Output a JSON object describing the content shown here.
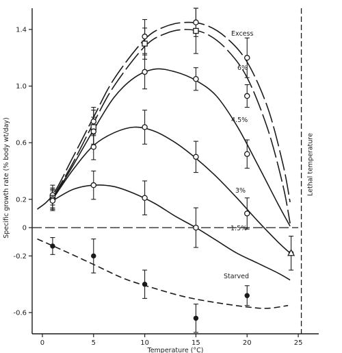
{
  "chart_data": {
    "type": "line",
    "title": "",
    "xlabel": "Temperature (°C)",
    "ylabel": "Specific growth rate (% body wt/day)",
    "xlim": [
      -1,
      27
    ],
    "ylim": [
      -0.75,
      1.55
    ],
    "x_ticks": [
      0,
      5,
      10,
      15,
      20,
      25
    ],
    "y_ticks": [
      -0.6,
      -0.2,
      0,
      0.2,
      0.6,
      1.0,
      1.4
    ],
    "x_tick_labels": [
      "0",
      "5",
      "10",
      "15",
      "20",
      "25"
    ],
    "y_tick_labels": [
      "-0.6",
      "-0.2",
      "0",
      "0.2",
      "0.6",
      "1.0",
      "1.4"
    ],
    "zero_line": true,
    "vertical_reference": {
      "x": 25.3,
      "label": "Lethal temperature"
    },
    "series": [
      {
        "name": "Excess",
        "marker": "open-circle",
        "dash": "long",
        "points": [
          {
            "x": 1,
            "y": 0.23,
            "err": 0.07
          },
          {
            "x": 5,
            "y": 0.75,
            "err": 0.1
          },
          {
            "x": 10,
            "y": 1.35,
            "err": 0.12
          },
          {
            "x": 15,
            "y": 1.45,
            "err": 0.1
          },
          {
            "x": 20,
            "y": 1.2,
            "err": 0.14
          }
        ],
        "curve": [
          [
            -0.5,
            0.13
          ],
          [
            1,
            0.23
          ],
          [
            3,
            0.5
          ],
          [
            5,
            0.78
          ],
          [
            7,
            1.05
          ],
          [
            10,
            1.33
          ],
          [
            12,
            1.42
          ],
          [
            14,
            1.45
          ],
          [
            16,
            1.43
          ],
          [
            18,
            1.34
          ],
          [
            20,
            1.17
          ],
          [
            22,
            0.85
          ],
          [
            23.5,
            0.45
          ],
          [
            24.2,
            0.18
          ]
        ]
      },
      {
        "name": "6%",
        "marker": "open-square",
        "dash": "long",
        "points": [
          {
            "x": 1,
            "y": 0.21,
            "err": 0.07
          },
          {
            "x": 5,
            "y": 0.71,
            "err": 0.12
          },
          {
            "x": 10,
            "y": 1.3,
            "err": 0.11
          },
          {
            "x": 15,
            "y": 1.39,
            "err": 0.16
          }
        ],
        "curve": [
          [
            1,
            0.21
          ],
          [
            3,
            0.46
          ],
          [
            5,
            0.74
          ],
          [
            7,
            1.0
          ],
          [
            10,
            1.28
          ],
          [
            12,
            1.37
          ],
          [
            14,
            1.4
          ],
          [
            16,
            1.37
          ],
          [
            18,
            1.26
          ],
          [
            20,
            1.06
          ],
          [
            22,
            0.7
          ],
          [
            23.5,
            0.3
          ],
          [
            24.2,
            0.03
          ]
        ]
      },
      {
        "name": "4.5%",
        "marker": "open-circle",
        "dash": "solid",
        "points": [
          {
            "x": 1,
            "y": 0.2,
            "err": 0.07
          },
          {
            "x": 5,
            "y": 0.68,
            "err": 0.1
          },
          {
            "x": 10,
            "y": 1.1,
            "err": 0.12
          },
          {
            "x": 15,
            "y": 1.05,
            "err": 0.08
          },
          {
            "x": 20,
            "y": 0.93,
            "err": 0.08
          }
        ],
        "curve": [
          [
            1,
            0.2
          ],
          [
            3,
            0.44
          ],
          [
            5,
            0.69
          ],
          [
            7,
            0.92
          ],
          [
            9,
            1.06
          ],
          [
            11,
            1.12
          ],
          [
            13,
            1.1
          ],
          [
            15,
            1.04
          ],
          [
            17,
            0.93
          ],
          [
            19,
            0.72
          ],
          [
            21,
            0.45
          ],
          [
            23,
            0.17
          ],
          [
            24.2,
            0.01
          ]
        ]
      },
      {
        "name": "3%",
        "marker": "open-circle",
        "dash": "solid",
        "points": [
          {
            "x": 1,
            "y": 0.2,
            "err": 0.07
          },
          {
            "x": 5,
            "y": 0.57,
            "err": 0.09
          },
          {
            "x": 10,
            "y": 0.71,
            "err": 0.12
          },
          {
            "x": 15,
            "y": 0.5,
            "err": 0.11
          },
          {
            "x": 20,
            "y": 0.52,
            "err": 0.1
          }
        ],
        "curve": [
          [
            1,
            0.2
          ],
          [
            3,
            0.41
          ],
          [
            5,
            0.58
          ],
          [
            7,
            0.67
          ],
          [
            9,
            0.71
          ],
          [
            11,
            0.68
          ],
          [
            13,
            0.6
          ],
          [
            15,
            0.49
          ],
          [
            17,
            0.36
          ],
          [
            19,
            0.21
          ],
          [
            21,
            0.05
          ],
          [
            23,
            -0.1
          ],
          [
            24.2,
            -0.18
          ]
        ]
      },
      {
        "name": "1.5%",
        "marker": "open-circle",
        "dash": "solid",
        "points": [
          {
            "x": 1,
            "y": 0.19,
            "err": 0.07
          },
          {
            "x": 5,
            "y": 0.3,
            "err": 0.1
          },
          {
            "x": 10,
            "y": 0.21,
            "err": 0.12
          },
          {
            "x": 15,
            "y": 0.0,
            "err": 0.14
          },
          {
            "x": 20,
            "y": 0.1,
            "err": 0.11
          }
        ],
        "curve": [
          [
            1,
            0.19
          ],
          [
            3,
            0.27
          ],
          [
            5,
            0.3
          ],
          [
            7,
            0.29
          ],
          [
            9,
            0.24
          ],
          [
            11,
            0.17
          ],
          [
            13,
            0.08
          ],
          [
            15,
            0.0
          ],
          [
            17,
            -0.09
          ],
          [
            19,
            -0.18
          ],
          [
            21,
            -0.25
          ],
          [
            23,
            -0.32
          ],
          [
            24.2,
            -0.37
          ]
        ]
      },
      {
        "name": "Starved",
        "marker": "filled-circle",
        "dash": "dashed",
        "points": [
          {
            "x": 1,
            "y": -0.13,
            "err": 0.06
          },
          {
            "x": 5,
            "y": -0.2,
            "err": 0.12
          },
          {
            "x": 10,
            "y": -0.4,
            "err": 0.1
          },
          {
            "x": 15,
            "y": -0.64,
            "err": 0.1
          },
          {
            "x": 20,
            "y": -0.48,
            "err": 0.07
          },
          {
            "x": 24.3,
            "y": -0.18,
            "err": 0.12
          }
        ],
        "curve": [
          [
            -0.5,
            -0.08
          ],
          [
            2,
            -0.16
          ],
          [
            5,
            -0.26
          ],
          [
            8,
            -0.36
          ],
          [
            11,
            -0.43
          ],
          [
            14,
            -0.49
          ],
          [
            17,
            -0.53
          ],
          [
            20,
            -0.56
          ],
          [
            22,
            -0.57
          ],
          [
            24,
            -0.55
          ]
        ]
      }
    ]
  }
}
